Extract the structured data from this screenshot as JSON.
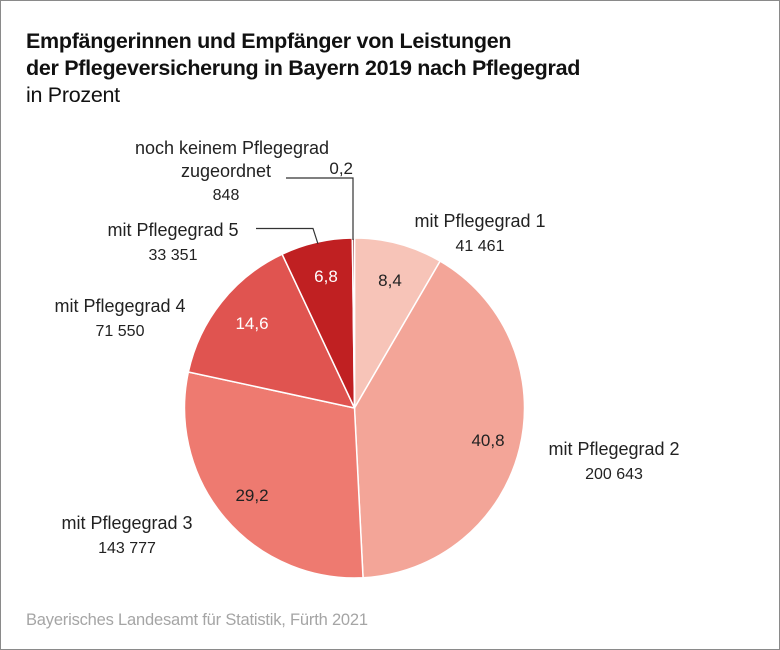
{
  "title_line1": "Empfängerinnen und Empfänger von Leistungen",
  "title_line2": "der Pflegeversicherung in Bayern 2019 nach Pflegegrad",
  "subtitle": "in Prozent",
  "source": "Bayerisches Landesamt für Statistik, Fürth 2021",
  "chart_data": {
    "type": "pie",
    "title": "Empfängerinnen und Empfänger von Leistungen der Pflegeversicherung in Bayern 2019 nach Pflegegrad",
    "subtitle": "in Prozent",
    "start": "top",
    "direction": "clockwise",
    "slices": [
      {
        "label": "mit Pflegegrad 1",
        "count": "41 461",
        "percent": 8.4,
        "percent_label": "8,4",
        "color": "#f7c4b8",
        "text_color": "#222222"
      },
      {
        "label": "mit Pflegegrad 2",
        "count": "200 643",
        "percent": 40.8,
        "percent_label": "40,8",
        "color": "#f3a598",
        "text_color": "#222222"
      },
      {
        "label": "mit Pflegegrad 3",
        "count": "143 777",
        "percent": 29.2,
        "percent_label": "29,2",
        "color": "#ee7a70",
        "text_color": "#222222"
      },
      {
        "label": "mit Pflegegrad 4",
        "count": "71 550",
        "percent": 14.6,
        "percent_label": "14,6",
        "color": "#e05450",
        "text_color": "#ffffff"
      },
      {
        "label": "mit Pflegegrad 5",
        "count": "33 351",
        "percent": 6.8,
        "percent_label": "6,8",
        "color": "#c02022",
        "text_color": "#ffffff"
      },
      {
        "label": "noch keinem Pflegegrad zugeordnet",
        "label_lines": [
          "noch keinem Pflegegrad",
          "zugeordnet"
        ],
        "count": "848",
        "percent": 0.2,
        "percent_label": "0,2",
        "color": "#8e1518",
        "text_color": "#222222"
      }
    ]
  }
}
